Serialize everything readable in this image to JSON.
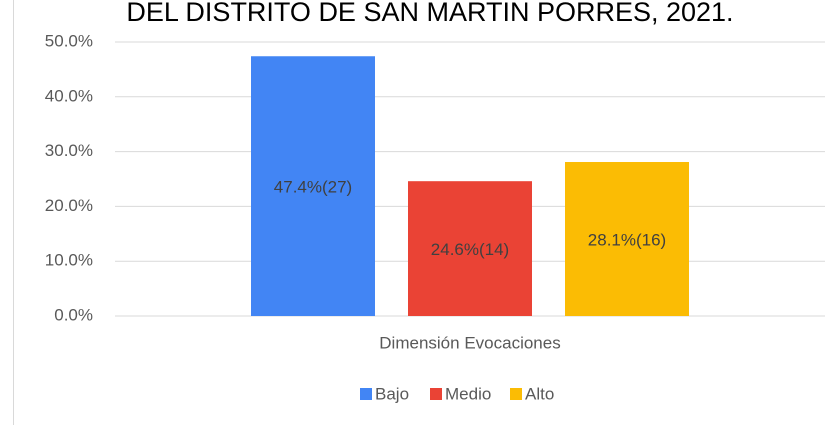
{
  "chart_data": {
    "type": "bar",
    "title": "DEL DISTRITO DE SAN MARTIN PORRES, 2021.",
    "categories": [
      "Dimensión Evocaciones"
    ],
    "series": [
      {
        "name": "Bajo",
        "color": "#4285f4",
        "values": [
          47.4
        ],
        "value_labels": [
          "47.4%(27)"
        ]
      },
      {
        "name": "Medio",
        "color": "#ea4335",
        "values": [
          24.6
        ],
        "value_labels": [
          "24.6%(14)"
        ]
      },
      {
        "name": "Alto",
        "color": "#fbbc04",
        "values": [
          28.1
        ],
        "value_labels": [
          "28.1%(16)"
        ]
      }
    ],
    "ylim": [
      0,
      50
    ],
    "yticks": [
      {
        "value": 0,
        "label": "0.0%"
      },
      {
        "value": 10,
        "label": "10.0%"
      },
      {
        "value": 20,
        "label": "20.0%"
      },
      {
        "value": 30,
        "label": "30.0%"
      },
      {
        "value": 40,
        "label": "40.0%"
      },
      {
        "value": 50,
        "label": "50.0%"
      }
    ],
    "grid": true,
    "legend": "bottom"
  }
}
